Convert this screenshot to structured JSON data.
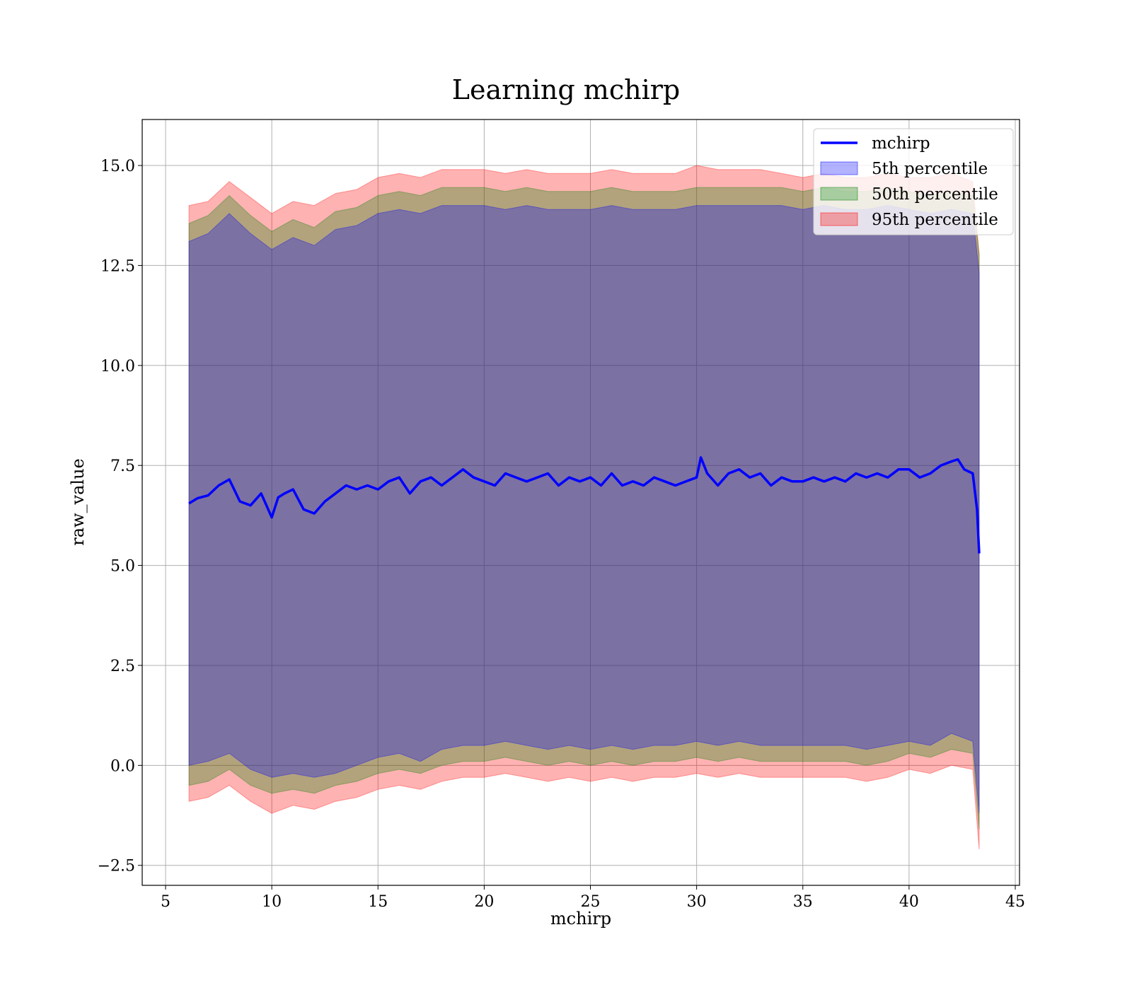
{
  "chart_data": {
    "type": "line",
    "title": "Learning mchirp",
    "xlabel": "mchirp",
    "ylabel": "raw_value",
    "xlim": [
      3.9,
      45.2
    ],
    "ylim": [
      -3.0,
      16.15
    ],
    "xticks": [
      5,
      10,
      15,
      20,
      25,
      30,
      35,
      40,
      45
    ],
    "yticks": [
      -2.5,
      0.0,
      2.5,
      5.0,
      7.5,
      10.0,
      12.5,
      15.0
    ],
    "xtick_labels": [
      "5",
      "10",
      "15",
      "20",
      "25",
      "30",
      "35",
      "40",
      "45"
    ],
    "ytick_labels": [
      "−2.5",
      "0.0",
      "2.5",
      "5.0",
      "7.5",
      "10.0",
      "12.5",
      "15.0"
    ],
    "grid": true,
    "legend_position": "top-right",
    "series": [
      {
        "name": "mchirp",
        "kind": "line",
        "color": "#0000ff",
        "x": [
          6.1,
          6.5,
          7.0,
          7.5,
          8.0,
          8.5,
          9.0,
          9.5,
          10.0,
          10.3,
          10.6,
          11.0,
          11.5,
          12.0,
          12.5,
          13.0,
          13.5,
          14.0,
          14.5,
          15.0,
          15.5,
          16.0,
          16.5,
          17.0,
          17.5,
          18.0,
          18.5,
          19.0,
          19.5,
          20.0,
          20.5,
          21.0,
          21.5,
          22.0,
          22.5,
          23.0,
          23.5,
          24.0,
          24.5,
          25.0,
          25.5,
          26.0,
          26.5,
          27.0,
          27.5,
          28.0,
          28.5,
          29.0,
          29.5,
          30.0,
          30.2,
          30.5,
          31.0,
          31.5,
          32.0,
          32.5,
          33.0,
          33.5,
          34.0,
          34.5,
          35.0,
          35.5,
          36.0,
          36.5,
          37.0,
          37.5,
          38.0,
          38.5,
          39.0,
          39.5,
          40.0,
          40.5,
          41.0,
          41.5,
          42.0,
          42.3,
          42.6,
          43.0,
          43.2,
          43.3
        ],
        "values": [
          6.55,
          6.68,
          6.75,
          7.0,
          7.15,
          6.6,
          6.5,
          6.8,
          6.2,
          6.7,
          6.8,
          6.9,
          6.4,
          6.3,
          6.6,
          6.8,
          7.0,
          6.9,
          7.0,
          6.9,
          7.1,
          7.2,
          6.8,
          7.1,
          7.2,
          7.0,
          7.2,
          7.4,
          7.2,
          7.1,
          7.0,
          7.3,
          7.2,
          7.1,
          7.2,
          7.3,
          7.0,
          7.2,
          7.1,
          7.2,
          7.0,
          7.3,
          7.0,
          7.1,
          7.0,
          7.2,
          7.1,
          7.0,
          7.1,
          7.2,
          7.7,
          7.3,
          7.0,
          7.3,
          7.4,
          7.2,
          7.3,
          7.0,
          7.2,
          7.1,
          7.1,
          7.2,
          7.1,
          7.2,
          7.1,
          7.3,
          7.2,
          7.3,
          7.2,
          7.4,
          7.4,
          7.2,
          7.3,
          7.5,
          7.6,
          7.65,
          7.4,
          7.3,
          6.4,
          5.3
        ]
      },
      {
        "name": "5th percentile",
        "kind": "band",
        "color": "#0000ff",
        "x": [
          6.1,
          7.0,
          8.0,
          9.0,
          10.0,
          11.0,
          12.0,
          13.0,
          14.0,
          15.0,
          16.0,
          17.0,
          18.0,
          19.0,
          20.0,
          21.0,
          22.0,
          23.0,
          24.0,
          25.0,
          26.0,
          27.0,
          28.0,
          29.0,
          30.0,
          31.0,
          32.0,
          33.0,
          34.0,
          35.0,
          36.0,
          37.0,
          38.0,
          39.0,
          40.0,
          41.0,
          42.0,
          43.0,
          43.3
        ],
        "lower": [
          0.0,
          0.1,
          0.3,
          -0.1,
          -0.3,
          -0.2,
          -0.3,
          -0.2,
          0.0,
          0.2,
          0.3,
          0.1,
          0.4,
          0.5,
          0.5,
          0.6,
          0.5,
          0.4,
          0.5,
          0.4,
          0.5,
          0.4,
          0.5,
          0.5,
          0.6,
          0.5,
          0.6,
          0.5,
          0.5,
          0.5,
          0.5,
          0.5,
          0.4,
          0.5,
          0.6,
          0.5,
          0.8,
          0.6,
          -1.2
        ],
        "upper": [
          13.1,
          13.3,
          13.8,
          13.3,
          12.9,
          13.2,
          13.0,
          13.4,
          13.5,
          13.8,
          13.9,
          13.8,
          14.0,
          14.0,
          14.0,
          13.9,
          14.0,
          13.9,
          13.9,
          13.9,
          14.0,
          13.9,
          13.9,
          13.9,
          14.0,
          14.0,
          14.0,
          14.0,
          14.0,
          13.9,
          14.0,
          13.9,
          13.9,
          14.0,
          13.9,
          13.8,
          13.9,
          13.8,
          12.3
        ]
      },
      {
        "name": "50th percentile",
        "kind": "band",
        "color": "#008000",
        "x": [
          6.1,
          7.0,
          8.0,
          9.0,
          10.0,
          11.0,
          12.0,
          13.0,
          14.0,
          15.0,
          16.0,
          17.0,
          18.0,
          19.0,
          20.0,
          21.0,
          22.0,
          23.0,
          24.0,
          25.0,
          26.0,
          27.0,
          28.0,
          29.0,
          30.0,
          31.0,
          32.0,
          33.0,
          34.0,
          35.0,
          36.0,
          37.0,
          38.0,
          39.0,
          40.0,
          41.0,
          42.0,
          43.0,
          43.3
        ],
        "lower": [
          -0.5,
          -0.4,
          -0.1,
          -0.5,
          -0.7,
          -0.6,
          -0.7,
          -0.5,
          -0.4,
          -0.2,
          -0.1,
          -0.2,
          0.0,
          0.1,
          0.1,
          0.2,
          0.1,
          0.0,
          0.1,
          0.0,
          0.1,
          0.0,
          0.1,
          0.1,
          0.2,
          0.1,
          0.2,
          0.1,
          0.1,
          0.1,
          0.1,
          0.1,
          0.0,
          0.1,
          0.3,
          0.2,
          0.4,
          0.3,
          -1.6
        ]
      },
      {
        "name": "95th percentile",
        "kind": "band",
        "color": "#ff0000",
        "x": [
          6.1,
          7.0,
          8.0,
          9.0,
          10.0,
          11.0,
          12.0,
          13.0,
          14.0,
          15.0,
          16.0,
          17.0,
          18.0,
          19.0,
          20.0,
          21.0,
          22.0,
          23.0,
          24.0,
          25.0,
          26.0,
          27.0,
          28.0,
          29.0,
          30.0,
          31.0,
          32.0,
          33.0,
          34.0,
          35.0,
          36.0,
          37.0,
          38.0,
          39.0,
          40.0,
          41.0,
          42.0,
          43.0,
          43.3
        ],
        "lower": [
          -0.9,
          -0.8,
          -0.5,
          -0.9,
          -1.2,
          -1.0,
          -1.1,
          -0.9,
          -0.8,
          -0.6,
          -0.5,
          -0.6,
          -0.4,
          -0.3,
          -0.3,
          -0.2,
          -0.3,
          -0.4,
          -0.3,
          -0.4,
          -0.3,
          -0.4,
          -0.3,
          -0.3,
          -0.2,
          -0.3,
          -0.2,
          -0.3,
          -0.3,
          -0.3,
          -0.3,
          -0.3,
          -0.4,
          -0.3,
          -0.1,
          -0.2,
          0.0,
          -0.1,
          -2.1
        ],
        "upper": [
          14.0,
          14.1,
          14.6,
          14.2,
          13.8,
          14.1,
          14.0,
          14.3,
          14.4,
          14.7,
          14.8,
          14.7,
          14.9,
          14.9,
          14.9,
          14.8,
          14.9,
          14.8,
          14.8,
          14.8,
          14.9,
          14.8,
          14.8,
          14.8,
          15.0,
          14.9,
          14.9,
          14.9,
          14.8,
          14.7,
          14.8,
          14.7,
          14.7,
          14.8,
          14.7,
          14.7,
          14.8,
          14.6,
          12.8
        ]
      }
    ]
  }
}
